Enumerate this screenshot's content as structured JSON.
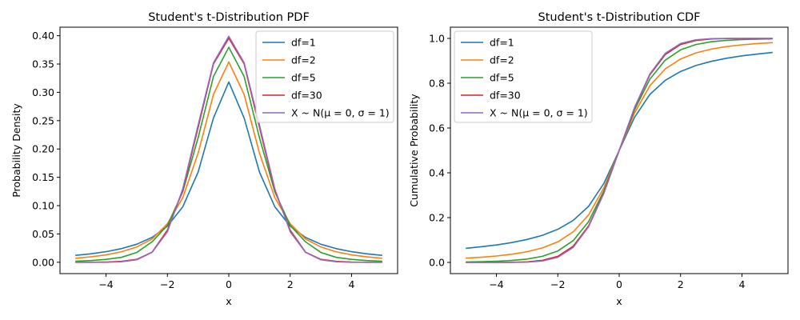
{
  "chart_data": [
    {
      "type": "line",
      "title": "Student's t-Distribution PDF",
      "xlabel": "x",
      "ylabel": "Probability Density",
      "xlim": [
        -5.5,
        5.5
      ],
      "ylim": [
        -0.02,
        0.415
      ],
      "xticks": [
        -4,
        -2,
        0,
        2,
        4
      ],
      "xtick_labels": [
        "−4",
        "−2",
        "0",
        "2",
        "4"
      ],
      "yticks": [
        0.0,
        0.05,
        0.1,
        0.15,
        0.2,
        0.25,
        0.3,
        0.35,
        0.4
      ],
      "ytick_labels": [
        "0.00",
        "0.05",
        "0.10",
        "0.15",
        "0.20",
        "0.25",
        "0.30",
        "0.35",
        "0.40"
      ],
      "grid": false,
      "legend_position": "top-right",
      "x": [
        -5,
        -4.5,
        -4,
        -3.5,
        -3,
        -2.5,
        -2,
        -1.5,
        -1,
        -0.5,
        0,
        0.5,
        1,
        1.5,
        2,
        2.5,
        3,
        3.5,
        4,
        4.5,
        5
      ],
      "series": [
        {
          "name": "df=1",
          "color": "#1f77b4",
          "values": [
            0.0122,
            0.0149,
            0.0187,
            0.0241,
            0.0318,
            0.0439,
            0.0637,
            0.0979,
            0.1592,
            0.2546,
            0.3183,
            0.2546,
            0.1592,
            0.0979,
            0.0637,
            0.0439,
            0.0318,
            0.0241,
            0.0187,
            0.0149,
            0.0122
          ]
        },
        {
          "name": "df=2",
          "color": "#ff7f0e",
          "values": [
            0.0071,
            0.0096,
            0.0131,
            0.0185,
            0.027,
            0.041,
            0.068,
            0.114,
            0.1925,
            0.2962,
            0.3536,
            0.2962,
            0.1925,
            0.114,
            0.068,
            0.041,
            0.027,
            0.0185,
            0.0131,
            0.0096,
            0.0071
          ]
        },
        {
          "name": "df=5",
          "color": "#2ca02c",
          "values": [
            0.0018,
            0.0031,
            0.0051,
            0.0087,
            0.0173,
            0.0361,
            0.0651,
            0.1245,
            0.2197,
            0.3279,
            0.3796,
            0.3279,
            0.2197,
            0.1245,
            0.0651,
            0.0361,
            0.0173,
            0.0087,
            0.0051,
            0.0031,
            0.0018
          ]
        },
        {
          "name": "df=30",
          "color": "#d62728",
          "values": [
            0.0,
            0.0001,
            0.0005,
            0.0016,
            0.0051,
            0.0179,
            0.0566,
            0.1271,
            0.2378,
            0.3502,
            0.3956,
            0.3502,
            0.2378,
            0.1271,
            0.0566,
            0.0179,
            0.0051,
            0.0016,
            0.0005,
            0.0001,
            0.0
          ]
        },
        {
          "name": "X ~ N(μ = 0, σ = 1)",
          "color": "#9467bd",
          "values": [
            0.0,
            0.0,
            0.0001,
            0.0009,
            0.0044,
            0.0175,
            0.054,
            0.1295,
            0.242,
            0.3521,
            0.3989,
            0.3521,
            0.242,
            0.1295,
            0.054,
            0.0175,
            0.0044,
            0.0009,
            0.0001,
            0.0,
            0.0
          ]
        }
      ]
    },
    {
      "type": "line",
      "title": "Student's t-Distribution CDF",
      "xlabel": "x",
      "ylabel": "Cumulative Probability",
      "xlim": [
        -5.5,
        5.5
      ],
      "ylim": [
        -0.05,
        1.05
      ],
      "xticks": [
        -4,
        -2,
        0,
        2,
        4
      ],
      "xtick_labels": [
        "−4",
        "−2",
        "0",
        "2",
        "4"
      ],
      "yticks": [
        0.0,
        0.2,
        0.4,
        0.6,
        0.8,
        1.0
      ],
      "ytick_labels": [
        "0.0",
        "0.2",
        "0.4",
        "0.6",
        "0.8",
        "1.0"
      ],
      "grid": false,
      "legend_position": "top-left",
      "x": [
        -5,
        -4.5,
        -4,
        -3.5,
        -3,
        -2.5,
        -2,
        -1.5,
        -1,
        -0.5,
        0,
        0.5,
        1,
        1.5,
        2,
        2.5,
        3,
        3.5,
        4,
        4.5,
        5
      ],
      "series": [
        {
          "name": "df=1",
          "color": "#1f77b4",
          "values": [
            0.0628,
            0.0699,
            0.078,
            0.0886,
            0.1024,
            0.1211,
            0.1476,
            0.1872,
            0.25,
            0.3524,
            0.5,
            0.6476,
            0.75,
            0.8128,
            0.8524,
            0.8789,
            0.8976,
            0.9114,
            0.922,
            0.9301,
            0.9372
          ]
        },
        {
          "name": "df=2",
          "color": "#ff7f0e",
          "values": [
            0.0189,
            0.023,
            0.0286,
            0.0364,
            0.0477,
            0.0648,
            0.0918,
            0.1362,
            0.2113,
            0.3333,
            0.5,
            0.6667,
            0.7887,
            0.8638,
            0.9082,
            0.9352,
            0.9523,
            0.9636,
            0.9714,
            0.977,
            0.9811
          ]
        },
        {
          "name": "df=5",
          "color": "#2ca02c",
          "values": [
            0.0021,
            0.0032,
            0.0052,
            0.0087,
            0.015,
            0.0272,
            0.051,
            0.097,
            0.1816,
            0.3191,
            0.5,
            0.6809,
            0.8184,
            0.903,
            0.949,
            0.9728,
            0.985,
            0.9913,
            0.9948,
            0.9968,
            0.9979
          ]
        },
        {
          "name": "df=30",
          "color": "#d62728",
          "values": [
            0.0,
            0.0,
            0.0002,
            0.0007,
            0.0027,
            0.0091,
            0.0273,
            0.072,
            0.1626,
            0.3104,
            0.5,
            0.6896,
            0.8374,
            0.928,
            0.9727,
            0.9909,
            0.9973,
            0.9993,
            0.9998,
            1.0,
            1.0
          ]
        },
        {
          "name": "X ~ N(μ = 0, σ = 1)",
          "color": "#9467bd",
          "values": [
            0.0,
            0.0,
            0.0,
            0.0002,
            0.0013,
            0.0062,
            0.0228,
            0.0668,
            0.1587,
            0.3085,
            0.5,
            0.6915,
            0.8413,
            0.9332,
            0.9772,
            0.9938,
            0.9987,
            0.9998,
            1.0,
            1.0,
            1.0
          ]
        }
      ]
    }
  ]
}
